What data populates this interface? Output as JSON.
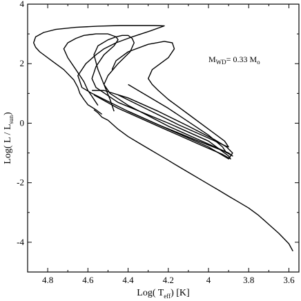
{
  "chart_data": {
    "type": "line",
    "xlabel": {
      "main": "Log( T",
      "sub": "eff",
      "tail": ")  [K]"
    },
    "ylabel": {
      "main": "Log( L / L",
      "sub": "sun",
      "tail": ")"
    },
    "xlim": [
      4.9,
      3.55
    ],
    "ylim": [
      -5,
      4
    ],
    "x_inverted": true,
    "grid": false,
    "x_ticks": [
      4.8,
      4.6,
      4.4,
      4.2,
      4.0,
      3.8,
      3.6
    ],
    "x_tick_labels": [
      "4.8",
      "4.6",
      "4.4",
      "4.2",
      "4",
      "3.8",
      "3.6"
    ],
    "y_ticks": [
      4,
      2,
      0,
      -2,
      -4
    ],
    "y_tick_labels": [
      "4",
      "2",
      "0",
      "-2",
      "-4"
    ],
    "annotation": {
      "parts": [
        {
          "t": "M",
          "s": false
        },
        {
          "t": "WD",
          "s": true
        },
        {
          "t": "= 0.33 M",
          "s": false
        },
        {
          "t": "o",
          "s": true
        }
      ],
      "x": 4.0,
      "y": 2.05
    },
    "series": [
      {
        "x": [
          4.53,
          4.56,
          4.6,
          4.62,
          4.64,
          4.65,
          4.67,
          4.72,
          4.78,
          4.84,
          4.86,
          4.87,
          4.86,
          4.82,
          4.76,
          4.66,
          4.55,
          4.44,
          4.33,
          4.27,
          4.22,
          4.29,
          4.38,
          4.46,
          4.52,
          4.56,
          4.61,
          4.65,
          4.63,
          4.58,
          4.4,
          4.2,
          4.0,
          3.9,
          3.88,
          3.91,
          3.97,
          4.1,
          4.25,
          4.4,
          4.52,
          4.58
        ],
        "y": [
          0.3,
          0.45,
          0.62,
          0.8,
          1.0,
          1.2,
          1.45,
          1.8,
          2.1,
          2.4,
          2.55,
          2.7,
          2.9,
          3.05,
          3.15,
          3.22,
          3.26,
          3.28,
          3.28,
          3.28,
          3.27,
          3.1,
          2.9,
          2.7,
          2.5,
          2.3,
          2.0,
          1.6,
          1.2,
          1.0,
          0.4,
          -0.2,
          -0.8,
          -1.2,
          -1.0,
          -0.8,
          -0.55,
          -0.1,
          0.4,
          0.85,
          1.1,
          1.1
        ]
      },
      {
        "x": [
          4.55,
          4.56,
          4.58,
          4.6,
          4.62,
          4.66,
          4.7,
          4.72,
          4.7,
          4.66,
          4.62,
          4.56,
          4.5,
          4.46,
          4.45,
          4.47,
          4.52,
          4.56,
          4.58,
          4.56,
          4.45,
          4.2,
          4.0,
          3.9,
          3.89,
          3.93,
          4.05,
          4.25,
          4.45,
          4.57
        ],
        "y": [
          0.6,
          0.7,
          0.9,
          1.1,
          1.4,
          1.8,
          2.2,
          2.5,
          2.7,
          2.85,
          2.95,
          3.0,
          3.0,
          2.9,
          2.8,
          2.6,
          2.3,
          1.9,
          1.5,
          1.2,
          0.7,
          0.0,
          -0.6,
          -1.1,
          -1.2,
          -1.05,
          -0.7,
          -0.1,
          0.5,
          0.95
        ]
      },
      {
        "x": [
          4.47,
          4.49,
          4.52,
          4.55,
          4.57,
          4.55,
          4.5,
          4.46,
          4.43,
          4.4,
          4.38,
          4.37,
          4.39,
          4.45,
          4.5,
          4.52,
          4.49,
          4.4,
          4.2,
          4.0,
          3.9,
          3.88,
          3.92,
          4.05,
          4.25,
          4.4
        ],
        "y": [
          0.4,
          0.8,
          1.3,
          1.8,
          2.3,
          2.6,
          2.8,
          2.9,
          2.95,
          2.95,
          2.85,
          2.7,
          2.4,
          2.0,
          1.6,
          1.3,
          1.0,
          0.6,
          -0.1,
          -0.7,
          -1.0,
          -1.1,
          -0.95,
          -0.6,
          -0.05,
          0.4
        ]
      },
      {
        "x": [
          4.48,
          4.46,
          4.4,
          4.3,
          4.22,
          4.18,
          4.17,
          4.2,
          4.28,
          4.3,
          4.28,
          4.25,
          4.2,
          4.1,
          4.0,
          3.92,
          3.9,
          3.92,
          4.0,
          4.15,
          4.3,
          4.45
        ],
        "y": [
          1.8,
          2.1,
          2.4,
          2.65,
          2.75,
          2.7,
          2.5,
          2.2,
          1.8,
          1.5,
          1.3,
          1.1,
          0.8,
          0.3,
          -0.2,
          -0.6,
          -0.8,
          -0.75,
          -0.5,
          -0.05,
          0.45,
          0.95
        ]
      },
      {
        "x": [
          4.4,
          4.3,
          4.2,
          4.1,
          4.0,
          3.93,
          3.91
        ],
        "y": [
          1.3,
          0.9,
          0.5,
          0.05,
          -0.4,
          -0.8,
          -1.0
        ]
      },
      {
        "x": [
          4.57,
          4.55,
          4.53,
          4.5,
          4.45,
          4.4,
          4.35,
          4.3,
          4.25,
          4.2,
          4.15,
          4.1,
          4.05,
          4.0,
          3.95,
          3.9,
          3.85,
          3.8,
          3.75,
          3.7,
          3.65,
          3.6,
          3.58
        ],
        "y": [
          0.45,
          0.35,
          0.2,
          0.1,
          -0.2,
          -0.45,
          -0.65,
          -0.85,
          -1.05,
          -1.25,
          -1.45,
          -1.65,
          -1.85,
          -2.05,
          -2.25,
          -2.45,
          -2.65,
          -2.85,
          -3.1,
          -3.4,
          -3.7,
          -4.05,
          -4.3
        ]
      }
    ]
  }
}
